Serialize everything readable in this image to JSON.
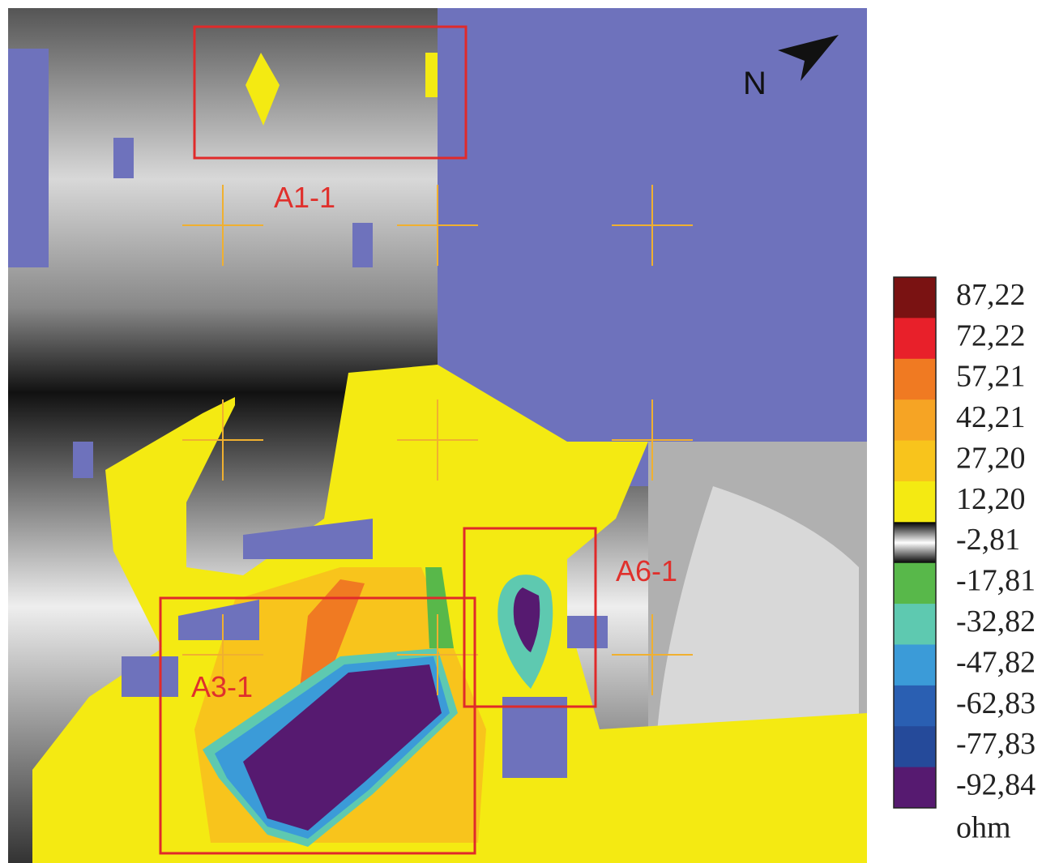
{
  "map": {
    "north_label": "N",
    "areas": [
      {
        "label": "A1-1"
      },
      {
        "label": "A3-1"
      },
      {
        "label": "A6-1"
      }
    ]
  },
  "legend": {
    "unit": "ohm",
    "items": [
      {
        "label": "87,22",
        "color": "#7a1212"
      },
      {
        "label": "72,22",
        "color": "#e8202a"
      },
      {
        "label": "57,21",
        "color": "#f07a22"
      },
      {
        "label": "42,21",
        "color": "#f6a424"
      },
      {
        "label": "27,20",
        "color": "#f8c41c"
      },
      {
        "label": "12,20",
        "color": "#f4ea12"
      },
      {
        "label": "-2,81",
        "color": "url(#gray-grad)"
      },
      {
        "label": "-17,81",
        "color": "#58b84a"
      },
      {
        "label": "-32,82",
        "color": "#5ec9b0"
      },
      {
        "label": "-47,82",
        "color": "#3b9bd8"
      },
      {
        "label": "-62,83",
        "color": "#2a5fb2"
      },
      {
        "label": "-77,83",
        "color": "#254a9a"
      },
      {
        "label": "-92,84",
        "color": "#561a70"
      }
    ]
  }
}
